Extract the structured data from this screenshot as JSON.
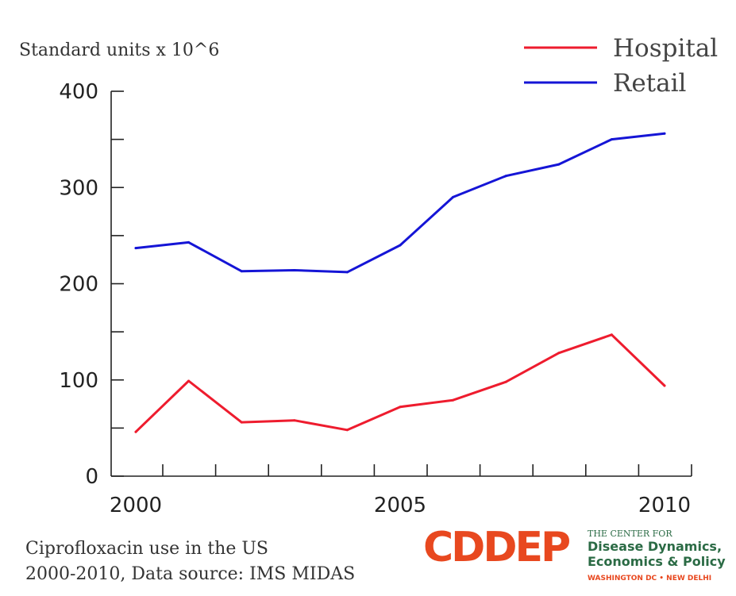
{
  "chart_data": {
    "type": "line",
    "ylabel": "Standard units x 10^6",
    "x": [
      2000,
      2001,
      2002,
      2003,
      2004,
      2005,
      2006,
      2007,
      2008,
      2009,
      2010
    ],
    "xticks": [
      "2000",
      "2005",
      "2010"
    ],
    "yticks": [
      "0",
      "100",
      "200",
      "300",
      "400"
    ],
    "xlim": [
      2000,
      2010
    ],
    "ylim": [
      0,
      400
    ],
    "grid": false,
    "legend_position": "top-right",
    "series": [
      {
        "name": "Hospital",
        "color": "#ee1c2e",
        "values": [
          46,
          99,
          56,
          58,
          48,
          72,
          79,
          98,
          128,
          147,
          94
        ]
      },
      {
        "name": "Retail",
        "color": "#1515d6",
        "values": [
          237,
          243,
          213,
          214,
          212,
          240,
          290,
          312,
          324,
          350,
          356
        ]
      }
    ]
  },
  "caption": {
    "line1": "Ciprofloxacin use in the US",
    "line2": "2000-2010, Data source: IMS MIDAS"
  },
  "logo": {
    "mark": "CDDEP",
    "small": "THE CENTER FOR",
    "main1": "Disease Dynamics,",
    "main2": "Economics & Policy",
    "foot": "WASHINGTON DC • NEW DELHI"
  }
}
